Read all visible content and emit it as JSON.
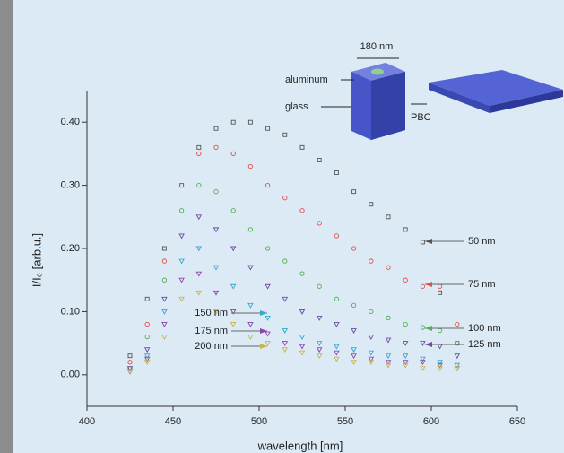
{
  "chart_data": {
    "type": "scatter",
    "xlabel": "wavelength [nm]",
    "ylabel": "I/I₀ [arb.u.]",
    "x": [
      425,
      435,
      445,
      455,
      465,
      475,
      485,
      495,
      505,
      515,
      525,
      535,
      545,
      555,
      565,
      575,
      585,
      595,
      605,
      615
    ],
    "series": [
      {
        "name": "50 nm",
        "color": "#555555",
        "marker": "square",
        "values": [
          0.03,
          0.12,
          0.2,
          0.3,
          0.36,
          0.39,
          0.4,
          0.4,
          0.39,
          0.38,
          0.36,
          0.34,
          0.32,
          0.29,
          0.27,
          0.25,
          0.23,
          0.21,
          0.13,
          0.05
        ]
      },
      {
        "name": "75 nm",
        "color": "#e0504a",
        "marker": "circle",
        "values": [
          0.02,
          0.08,
          0.18,
          0.3,
          0.35,
          0.36,
          0.35,
          0.33,
          0.3,
          0.28,
          0.26,
          0.24,
          0.22,
          0.2,
          0.18,
          0.17,
          0.15,
          0.14,
          0.14,
          0.08
        ]
      },
      {
        "name": "100 nm",
        "color": "#4fb050",
        "marker": "circle",
        "values": [
          0.01,
          0.06,
          0.15,
          0.26,
          0.3,
          0.29,
          0.26,
          0.23,
          0.2,
          0.18,
          0.16,
          0.14,
          0.12,
          0.11,
          0.1,
          0.09,
          0.08,
          0.075,
          0.07,
          0.05
        ]
      },
      {
        "name": "125 nm",
        "color": "#6a4c9c",
        "marker": "triangle",
        "values": [
          0.01,
          0.04,
          0.12,
          0.22,
          0.25,
          0.23,
          0.2,
          0.17,
          0.14,
          0.12,
          0.1,
          0.09,
          0.08,
          0.07,
          0.06,
          0.055,
          0.05,
          0.05,
          0.045,
          0.03
        ]
      },
      {
        "name": "150 nm",
        "color": "#36a9c9",
        "marker": "triangle",
        "values": [
          0.005,
          0.03,
          0.1,
          0.18,
          0.2,
          0.17,
          0.14,
          0.11,
          0.09,
          0.07,
          0.06,
          0.05,
          0.045,
          0.04,
          0.035,
          0.03,
          0.03,
          0.025,
          0.02,
          0.015
        ]
      },
      {
        "name": "175 nm",
        "color": "#8e44ad",
        "marker": "triangle",
        "values": [
          0.005,
          0.025,
          0.08,
          0.15,
          0.16,
          0.13,
          0.1,
          0.08,
          0.065,
          0.05,
          0.045,
          0.04,
          0.035,
          0.03,
          0.025,
          0.02,
          0.02,
          0.02,
          0.015,
          0.01
        ]
      },
      {
        "name": "200 nm",
        "color": "#c9b44a",
        "marker": "triangle",
        "values": [
          0.005,
          0.02,
          0.06,
          0.12,
          0.13,
          0.1,
          0.08,
          0.06,
          0.05,
          0.04,
          0.035,
          0.03,
          0.025,
          0.02,
          0.02,
          0.015,
          0.015,
          0.01,
          0.01,
          0.01
        ]
      }
    ],
    "xlim": [
      400,
      650
    ],
    "xticks": [
      400,
      450,
      500,
      550,
      600,
      650
    ],
    "ylim": [
      -0.05,
      0.45
    ],
    "yticks": [
      {
        "value": 0,
        "label": "0.00"
      },
      {
        "value": 0.1,
        "label": "0.10"
      },
      {
        "value": 0.2,
        "label": "0.20"
      },
      {
        "value": 0.3,
        "label": "0.30"
      },
      {
        "value": 0.4,
        "label": "0.40"
      }
    ],
    "annotations": [
      "180 nm",
      "aluminum",
      "glass",
      "PBC"
    ]
  }
}
